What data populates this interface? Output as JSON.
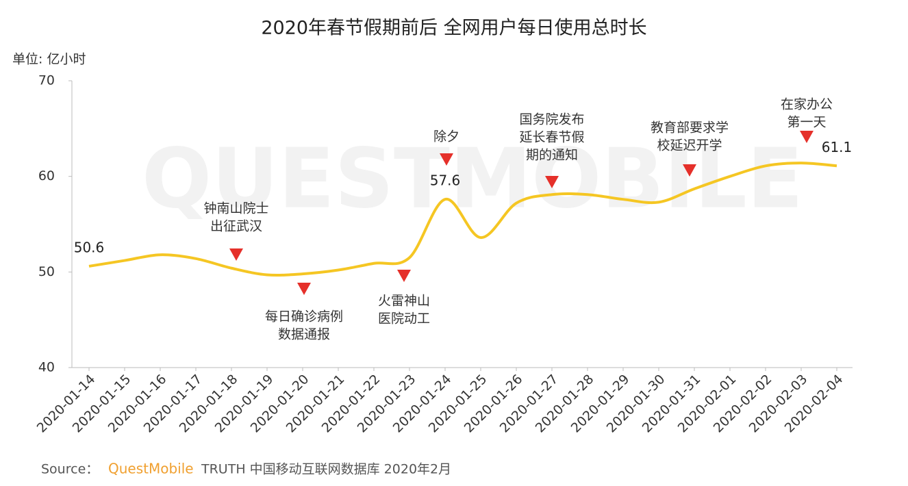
{
  "chart_data": {
    "type": "line",
    "title": "2020年春节假期前后 全网用户每日使用总时长",
    "unit_label": "单位: 亿小时",
    "watermark": "QUESTMOBILE",
    "categories": [
      "2020-01-14",
      "2020-01-15",
      "2020-01-16",
      "2020-01-17",
      "2020-01-18",
      "2020-01-19",
      "2020-01-20",
      "2020-01-21",
      "2020-01-22",
      "2020-01-23",
      "2020-01-24",
      "2020-01-25",
      "2020-01-26",
      "2020-01-27",
      "2020-01-28",
      "2020-01-29",
      "2020-01-30",
      "2020-01-31",
      "2020-02-01",
      "2020-02-02",
      "2020-02-03",
      "2020-02-04"
    ],
    "values": [
      50.6,
      51.2,
      51.8,
      51.4,
      50.4,
      49.7,
      49.8,
      50.2,
      50.9,
      51.5,
      57.6,
      53.6,
      57.2,
      58.1,
      58.1,
      57.6,
      57.3,
      58.7,
      60.0,
      61.1,
      61.4,
      61.1
    ],
    "color": "#f5c623",
    "marker_color": "#e5302a",
    "ylim": [
      40,
      70
    ],
    "yticks": [
      40,
      50,
      60,
      70
    ],
    "grid": false,
    "annotations": [
      {
        "x": "2020-01-18",
        "lines": [
          "钟南山院士",
          "出征武汉"
        ]
      },
      {
        "x": "2020-01-20",
        "lines": [
          "每日确诊病例",
          "数据通报"
        ]
      },
      {
        "x": "2020-01-23",
        "lines": [
          "火雷神山",
          "医院动工"
        ]
      },
      {
        "x": "2020-01-24",
        "lines": [
          "除夕"
        ]
      },
      {
        "x": "2020-01-27",
        "lines": [
          "国务院发布",
          "延长春节假",
          "期的通知"
        ]
      },
      {
        "x": "2020-01-31",
        "lines": [
          "教育部要求学",
          "校延迟开学"
        ]
      },
      {
        "x": "2020-02-03",
        "lines": [
          "在家办公",
          "第一天"
        ]
      }
    ],
    "source": {
      "prefix": "Source：",
      "brand": "QuestMobile",
      "text": "TRUTH 中国移动互联网数据库 2020年2月"
    }
  }
}
